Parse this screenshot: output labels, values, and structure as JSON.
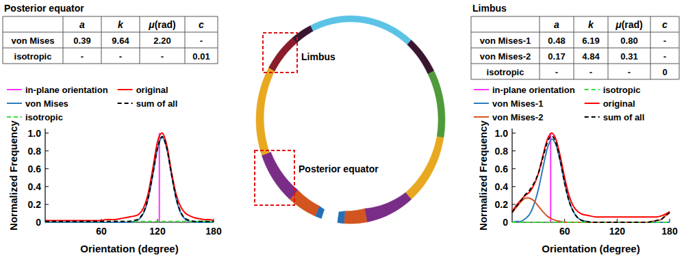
{
  "chart_data": [
    {
      "type": "line",
      "x_label": "Orientation (degree)",
      "y_label": "Normalized Frequency",
      "xlim": [
        0,
        180
      ],
      "ylim": [
        0,
        1.05
      ],
      "xticks": [
        60,
        120,
        180
      ],
      "yticks": [
        0,
        0.2,
        0.4,
        0.6,
        0.8,
        {
          "value": 1,
          "label": "1.0"
        }
      ],
      "legend": "top",
      "x": [
        0,
        5,
        10,
        15,
        20,
        25,
        30,
        35,
        40,
        45,
        50,
        55,
        60,
        65,
        70,
        75,
        80,
        85,
        90,
        95,
        100,
        105,
        110,
        115,
        120,
        125,
        130,
        135,
        140,
        145,
        150,
        155,
        160,
        165,
        170,
        175,
        180
      ],
      "series": [
        {
          "name": "in-plane orientation",
          "color": "#ff33ff",
          "line_style": "solid",
          "x": [
            122,
            122
          ],
          "values": [
            0,
            1
          ]
        },
        {
          "name": "von Mises",
          "color": "#2b7bba",
          "line_style": "solid",
          "values": [
            0,
            0,
            0,
            0,
            0,
            0,
            0,
            0,
            0,
            0,
            0,
            0,
            0,
            0,
            0,
            0,
            0,
            0,
            0,
            0.01,
            0.03,
            0.1,
            0.26,
            0.53,
            0.82,
            0.95,
            0.82,
            0.53,
            0.26,
            0.1,
            0.03,
            0.01,
            0,
            0,
            0,
            0,
            0
          ]
        },
        {
          "name": "isotropic",
          "color": "#33dd33",
          "line_style": "dashed",
          "values": [
            0.01,
            0.01,
            0.01,
            0.01,
            0.01,
            0.01,
            0.01,
            0.01,
            0.01,
            0.01,
            0.01,
            0.01,
            0.01,
            0.01,
            0.01,
            0.01,
            0.01,
            0.01,
            0.01,
            0.01,
            0.01,
            0.01,
            0.01,
            0.01,
            0.01,
            0.01,
            0.01,
            0.01,
            0.01,
            0.01,
            0.01,
            0.01,
            0.01,
            0.01,
            0.01,
            0.01,
            0.01
          ]
        },
        {
          "name": "original",
          "color": "#ff0000",
          "line_style": "solid",
          "values": [
            0.02,
            0.02,
            0.02,
            0.02,
            0.02,
            0.02,
            0.02,
            0.02,
            0.02,
            0.02,
            0.02,
            0.02,
            0.02,
            0.03,
            0.03,
            0.03,
            0.04,
            0.05,
            0.06,
            0.07,
            0.09,
            0.16,
            0.32,
            0.6,
            0.9,
            1.0,
            0.86,
            0.56,
            0.31,
            0.17,
            0.1,
            0.07,
            0.05,
            0.04,
            0.03,
            0.03,
            0.02
          ]
        },
        {
          "name": "sum of all",
          "color": "#000000",
          "line_style": "dashed",
          "values": [
            0.01,
            0.01,
            0.01,
            0.01,
            0.01,
            0.01,
            0.01,
            0.01,
            0.01,
            0.01,
            0.01,
            0.01,
            0.01,
            0.01,
            0.01,
            0.01,
            0.01,
            0.01,
            0.01,
            0.02,
            0.04,
            0.11,
            0.27,
            0.54,
            0.83,
            0.96,
            0.83,
            0.54,
            0.27,
            0.11,
            0.04,
            0.02,
            0.01,
            0.01,
            0.01,
            0.01,
            0.01
          ]
        }
      ]
    },
    {
      "type": "line",
      "x_label": "Orientation (degree)",
      "y_label": "Normalized Frequency",
      "xlim": [
        0,
        180
      ],
      "ylim": [
        0,
        1.05
      ],
      "xticks": [
        60,
        120,
        180
      ],
      "yticks": [
        0,
        0.2,
        0.4,
        0.6,
        0.8,
        {
          "value": 1,
          "label": "1.0"
        }
      ],
      "legend": "top",
      "x": [
        0,
        5,
        10,
        15,
        20,
        25,
        30,
        35,
        40,
        45,
        50,
        55,
        60,
        65,
        70,
        75,
        80,
        85,
        90,
        95,
        100,
        105,
        110,
        115,
        120,
        125,
        130,
        135,
        140,
        145,
        150,
        155,
        160,
        165,
        170,
        175,
        180
      ],
      "series": [
        {
          "name": "in-plane orientation",
          "color": "#ff33ff",
          "line_style": "solid",
          "x": [
            44,
            44
          ],
          "values": [
            0,
            1
          ]
        },
        {
          "name": "von Mises-1",
          "color": "#2b7bba",
          "line_style": "solid",
          "values": [
            0,
            0.01,
            0.01,
            0.04,
            0.09,
            0.2,
            0.37,
            0.6,
            0.82,
            0.93,
            0.87,
            0.68,
            0.44,
            0.24,
            0.12,
            0.05,
            0.02,
            0.01,
            0,
            0,
            0,
            0,
            0,
            0,
            0,
            0,
            0,
            0,
            0,
            0,
            0,
            0,
            0,
            0,
            0,
            0,
            0
          ]
        },
        {
          "name": "von Mises-2",
          "color": "#d9541e",
          "line_style": "solid",
          "values": [
            0.11,
            0.17,
            0.23,
            0.27,
            0.27,
            0.24,
            0.18,
            0.12,
            0.07,
            0.04,
            0.02,
            0.01,
            0,
            0,
            0,
            0,
            0,
            0,
            0,
            0,
            0,
            0,
            0,
            0,
            0,
            0,
            0,
            0,
            0,
            0,
            0,
            0,
            0.01,
            0.02,
            0.03,
            0.07,
            0.11
          ]
        },
        {
          "name": "isotropic",
          "color": "#33dd33",
          "line_style": "dashed",
          "values": [
            0,
            0,
            0,
            0,
            0,
            0,
            0,
            0,
            0,
            0,
            0,
            0,
            0,
            0,
            0,
            0,
            0,
            0,
            0,
            0,
            0,
            0,
            0,
            0,
            0,
            0,
            0,
            0,
            0,
            0,
            0,
            0,
            0,
            0,
            0,
            0,
            0
          ]
        },
        {
          "name": "original",
          "color": "#ff0000",
          "line_style": "solid",
          "values": [
            0.12,
            0.19,
            0.25,
            0.3,
            0.34,
            0.42,
            0.55,
            0.74,
            0.92,
            1.0,
            0.93,
            0.74,
            0.5,
            0.3,
            0.18,
            0.12,
            0.09,
            0.08,
            0.07,
            0.06,
            0.06,
            0.06,
            0.06,
            0.06,
            0.06,
            0.06,
            0.06,
            0.06,
            0.06,
            0.06,
            0.06,
            0.06,
            0.06,
            0.06,
            0.07,
            0.09,
            0.12
          ]
        },
        {
          "name": "sum of all",
          "color": "#000000",
          "line_style": "dashed",
          "values": [
            0.11,
            0.18,
            0.24,
            0.31,
            0.36,
            0.44,
            0.55,
            0.72,
            0.89,
            0.97,
            0.89,
            0.69,
            0.44,
            0.24,
            0.12,
            0.05,
            0.02,
            0.01,
            0,
            0,
            0,
            0,
            0,
            0,
            0,
            0,
            0,
            0,
            0,
            0,
            0,
            0,
            0.01,
            0.02,
            0.03,
            0.07,
            0.11
          ]
        }
      ]
    }
  ],
  "tables": [
    {
      "title": "Posterior equator",
      "header": [
        "a",
        "k",
        "μ(rad)",
        "c"
      ],
      "rows": [
        {
          "label": "von Mises",
          "cells": [
            "0.39",
            "9.64",
            "2.20",
            "-"
          ]
        },
        {
          "label": "isotropic",
          "cells": [
            "-",
            "-",
            "-",
            "0.01"
          ]
        }
      ]
    },
    {
      "title": "Limbus",
      "header": [
        "a",
        "k",
        "μ(rad)",
        "c"
      ],
      "rows": [
        {
          "label": "von Mises-1",
          "cells": [
            "0.48",
            "6.19",
            "0.80",
            "-"
          ]
        },
        {
          "label": "von Mises-2",
          "cells": [
            "0.17",
            "4.84",
            "0.31",
            "-"
          ]
        },
        {
          "label": "isotropic",
          "cells": [
            "-",
            "-",
            "-",
            "0"
          ]
        }
      ]
    }
  ],
  "diagram": {
    "labels": [
      "Limbus",
      "Posterior equator"
    ]
  }
}
